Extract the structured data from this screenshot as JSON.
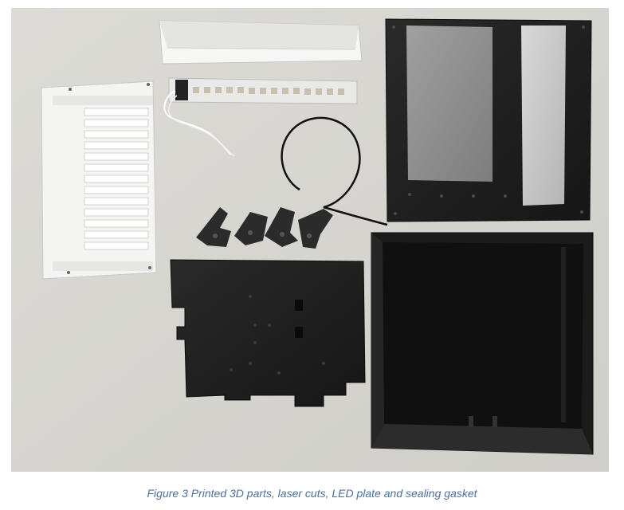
{
  "figure": {
    "caption": "Figure 3 Printed 3D parts, laser cuts, LED plate and sealing gasket"
  },
  "colors": {
    "caption_text": "#4a6fa5",
    "backdrop": "#d9d8d3",
    "black_print": "#1e1e1e",
    "white_print": "#f3f3f1"
  }
}
